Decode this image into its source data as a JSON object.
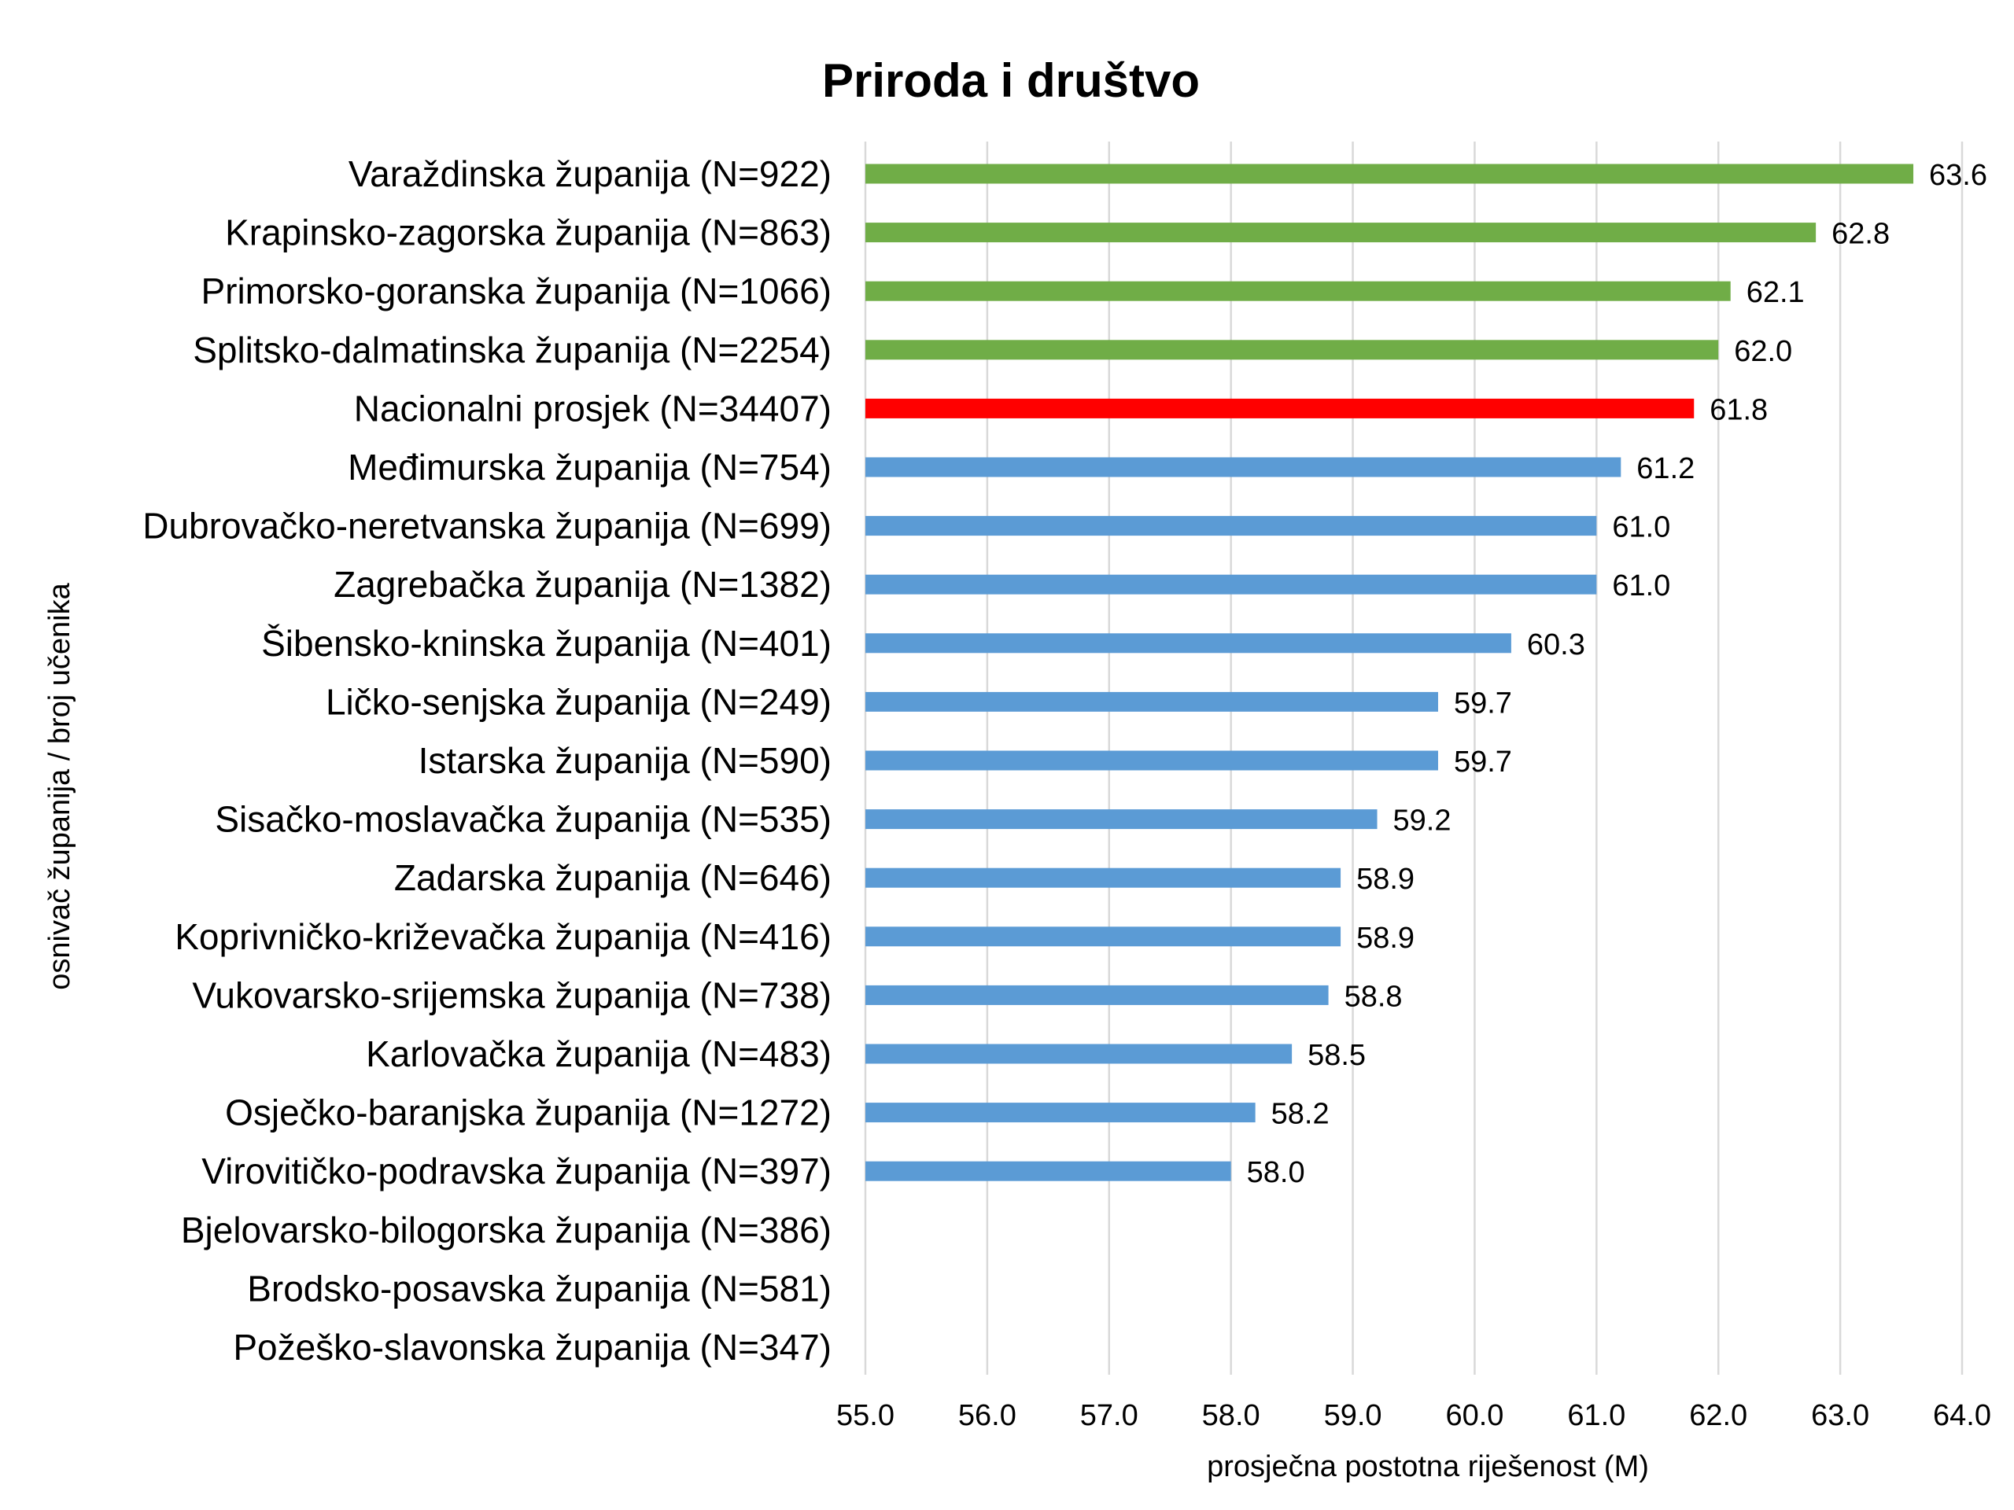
{
  "chart_data": {
    "type": "bar",
    "orientation": "horizontal",
    "title": "Priroda i društvo",
    "xlabel": "prosječna postotna riješenost (M)",
    "ylabel": "osnivač županija / broj učenika",
    "xlim": [
      55.0,
      64.0
    ],
    "xticks": [
      "55.0",
      "56.0",
      "57.0",
      "58.0",
      "59.0",
      "60.0",
      "61.0",
      "62.0",
      "63.0",
      "64.0"
    ],
    "grid": true,
    "categories": [
      "Varaždinska županija (N=922)",
      "Krapinsko-zagorska županija (N=863)",
      "Primorsko-goranska županija (N=1066)",
      "Splitsko-dalmatinska županija (N=2254)",
      "Nacionalni prosjek (N=34407)",
      "Međimurska županija (N=754)",
      "Dubrovačko-neretvanska županija (N=699)",
      "Zagrebačka županija (N=1382)",
      "Šibensko-kninska županija (N=401)",
      "Ličko-senjska županija (N=249)",
      "Istarska županija (N=590)",
      "Sisačko-moslavačka županija (N=535)",
      "Zadarska županija (N=646)",
      "Koprivničko-križevačka županija (N=416)",
      "Vukovarsko-srijemska županija (N=738)",
      "Karlovačka županija (N=483)",
      "Osječko-baranjska županija (N=1272)",
      "Virovitičko-podravska županija (N=397)",
      "Bjelovarsko-bilogorska županija (N=386)",
      "Brodsko-posavska županija (N=581)",
      "Požeško-slavonska županija (N=347)"
    ],
    "values": [
      63.6,
      62.8,
      62.1,
      62.0,
      61.8,
      61.2,
      61.0,
      61.0,
      60.3,
      59.7,
      59.7,
      59.2,
      58.9,
      58.9,
      58.8,
      58.5,
      58.2,
      58.0,
      null,
      null,
      null
    ],
    "value_labels": [
      "63.6",
      "62.8",
      "62.1",
      "62.0",
      "61.8",
      "61.2",
      "61.0",
      "61.0",
      "60.3",
      "59.7",
      "59.7",
      "59.2",
      "58.9",
      "58.9",
      "58.8",
      "58.5",
      "58.2",
      "58.0",
      "",
      "",
      ""
    ],
    "bar_colors": [
      "#70ad47",
      "#70ad47",
      "#70ad47",
      "#70ad47",
      "#ff0000",
      "#5b9bd5",
      "#5b9bd5",
      "#5b9bd5",
      "#5b9bd5",
      "#5b9bd5",
      "#5b9bd5",
      "#5b9bd5",
      "#5b9bd5",
      "#5b9bd5",
      "#5b9bd5",
      "#5b9bd5",
      "#5b9bd5",
      "#5b9bd5",
      "#5b9bd5",
      "#5b9bd5",
      "#5b9bd5"
    ]
  }
}
